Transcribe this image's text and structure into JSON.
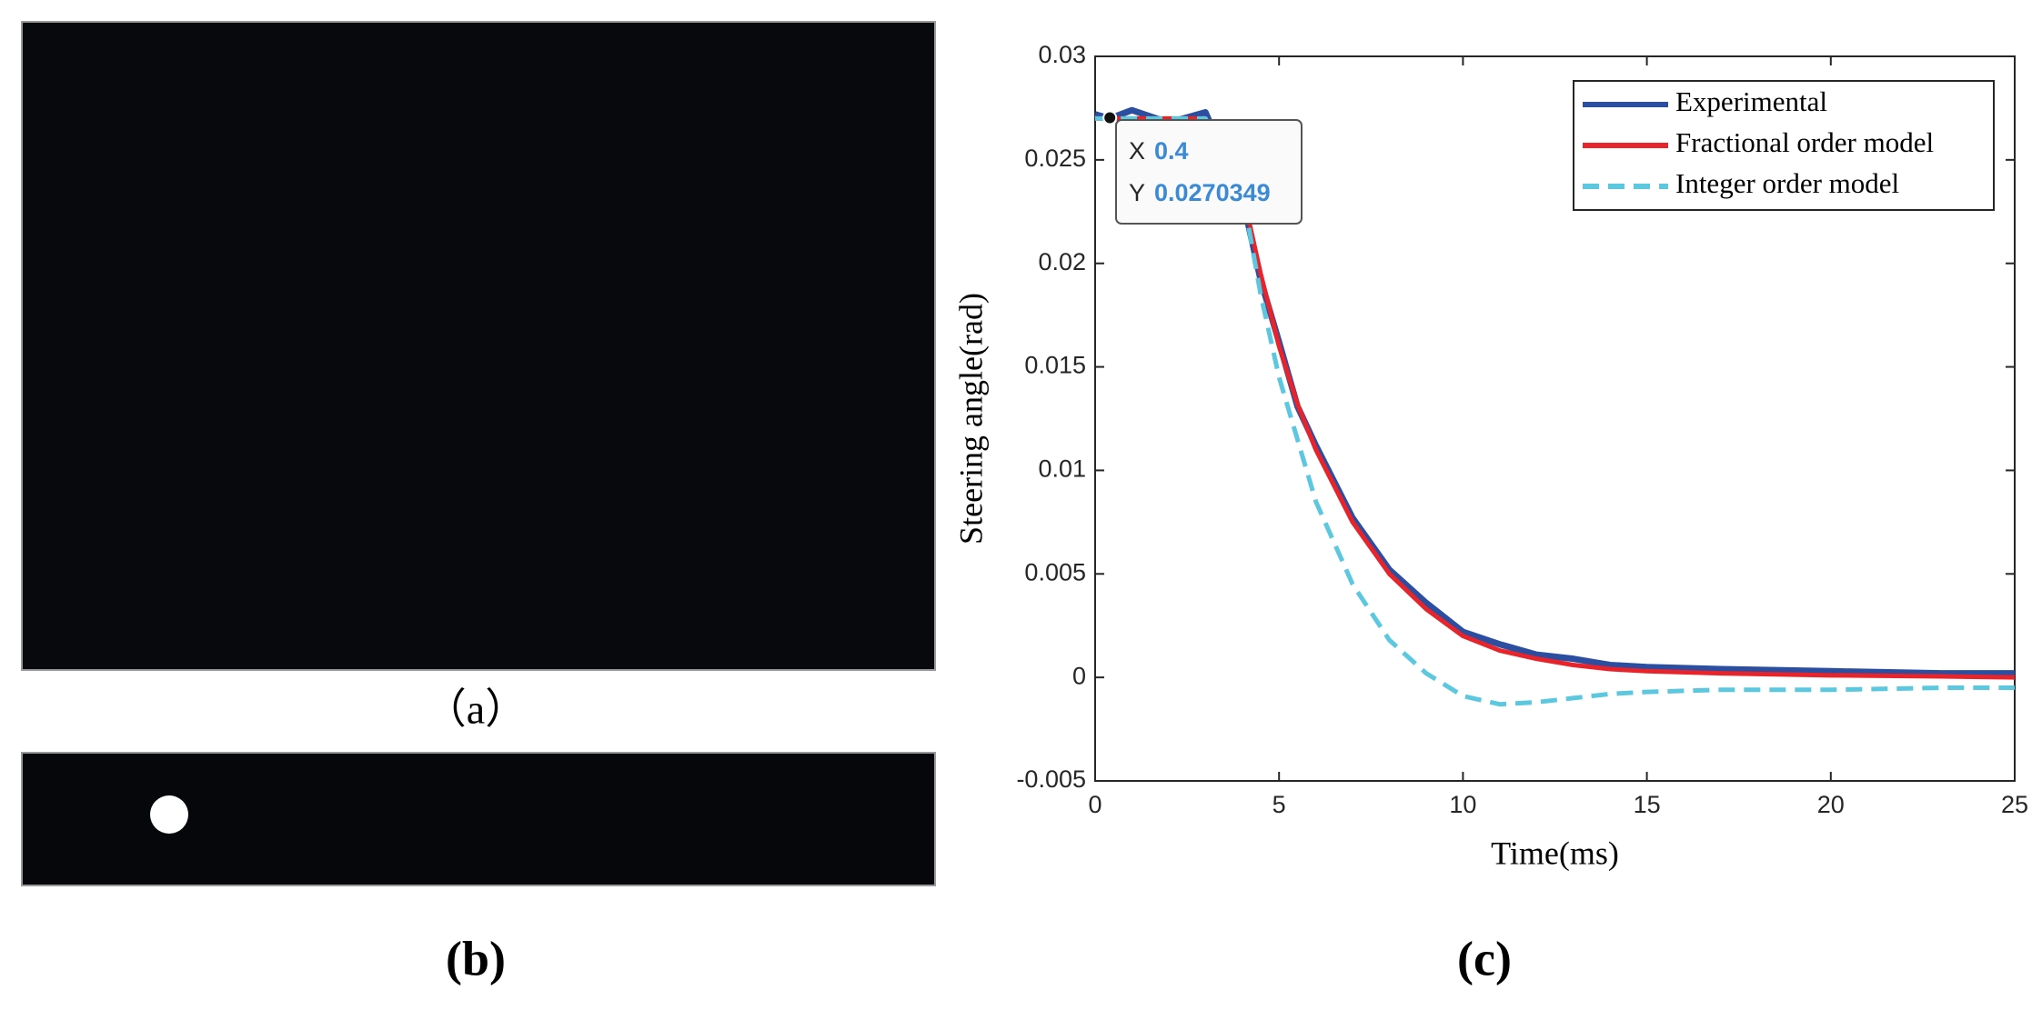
{
  "panels": {
    "a": "（a）",
    "b": "(b)",
    "c": "(c)"
  },
  "chart_data": {
    "type": "line",
    "xlabel": "Time(ms)",
    "ylabel": "Steering angle(rad)",
    "x": [
      0,
      0.4,
      1,
      2,
      3,
      4,
      4.5,
      5,
      5.5,
      6,
      7,
      8,
      9,
      10,
      11,
      12,
      13,
      14,
      15,
      17,
      20,
      23,
      25
    ],
    "series": [
      {
        "name": "Experimental",
        "color": "#2c4ea0",
        "dash": false,
        "values": [
          0.0272,
          0.027,
          0.0274,
          0.0268,
          0.0273,
          0.0232,
          0.0192,
          0.0162,
          0.0131,
          0.0112,
          0.0077,
          0.0052,
          0.0036,
          0.0022,
          0.0016,
          0.0011,
          0.0009,
          0.0006,
          0.0005,
          0.0004,
          0.0003,
          0.0002,
          0.0002
        ]
      },
      {
        "name": "Fractional order model",
        "color": "#e8242a",
        "dash": false,
        "values": [
          0.027,
          0.027,
          0.027,
          0.027,
          0.027,
          0.0235,
          0.0195,
          0.016,
          0.0132,
          0.011,
          0.0075,
          0.005,
          0.0033,
          0.002,
          0.0013,
          0.0009,
          0.0006,
          0.0004,
          0.0003,
          0.0002,
          0.0001,
          5e-05,
          0
        ]
      },
      {
        "name": "Integer order model",
        "color": "#5bc8e0",
        "dash": true,
        "values": [
          0.027,
          0.027,
          0.027,
          0.027,
          0.027,
          0.0235,
          0.0185,
          0.0145,
          0.0115,
          0.0085,
          0.0045,
          0.0018,
          0.0002,
          -0.0009,
          -0.0013,
          -0.0012,
          -0.001,
          -0.0008,
          -0.0007,
          -0.0006,
          -0.0006,
          -0.0005,
          -0.0005
        ]
      }
    ],
    "xlim": [
      0,
      25
    ],
    "xticks": [
      0,
      5,
      10,
      15,
      20,
      25
    ],
    "ylim": [
      -0.005,
      0.03
    ],
    "yticks": [
      -0.005,
      0,
      0.005,
      0.01,
      0.015,
      0.02,
      0.025,
      0.03
    ],
    "legend": "upper right",
    "datatip": {
      "x_label": "X",
      "x": 0.4,
      "y_label": "Y",
      "y": 0.0270349
    }
  }
}
